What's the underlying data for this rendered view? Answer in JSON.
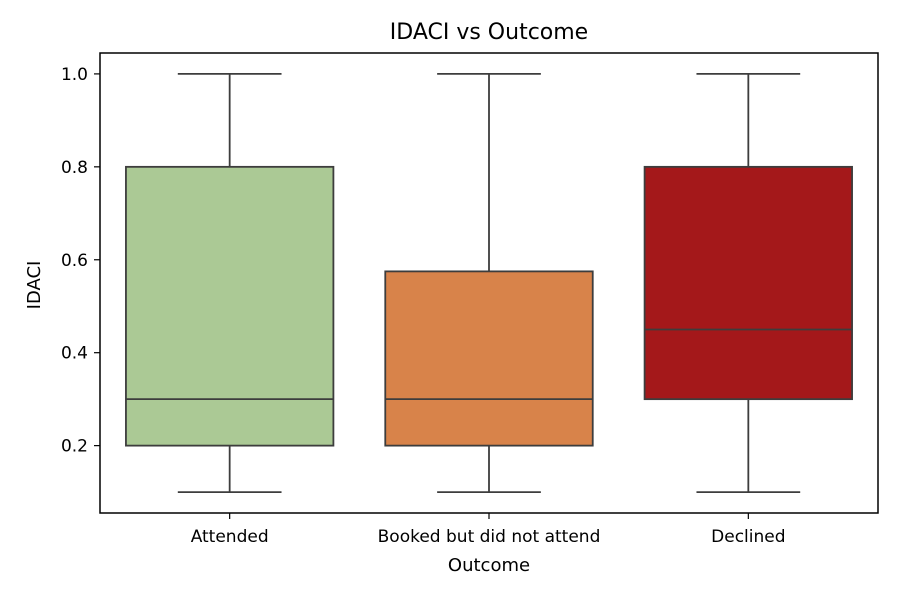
{
  "chart_data": {
    "type": "box",
    "title": "IDACI vs Outcome",
    "xlabel": "Outcome",
    "ylabel": "IDACI",
    "ylim": [
      0.055,
      1.045
    ],
    "yticks": [
      0.2,
      0.4,
      0.6,
      0.8,
      1.0
    ],
    "ytick_labels": [
      "0.2",
      "0.4",
      "0.6",
      "0.8",
      "1.0"
    ],
    "grid": false,
    "legend": "none",
    "categories": [
      "Attended",
      "Booked but did not attend",
      "Declined"
    ],
    "boxes": [
      {
        "category": "Attended",
        "whisker_low": 0.1,
        "q1": 0.2,
        "median": 0.3,
        "q3": 0.8,
        "whisker_high": 1.0,
        "color": "#abc995"
      },
      {
        "category": "Booked but did not attend",
        "whisker_low": 0.1,
        "q1": 0.2,
        "median": 0.3,
        "q3": 0.575,
        "whisker_high": 1.0,
        "color": "#d8834a"
      },
      {
        "category": "Declined",
        "whisker_low": 0.1,
        "q1": 0.3,
        "median": 0.45,
        "q3": 0.8,
        "whisker_high": 1.0,
        "color": "#a4181a"
      }
    ],
    "line_color": "#3d3d3d"
  }
}
